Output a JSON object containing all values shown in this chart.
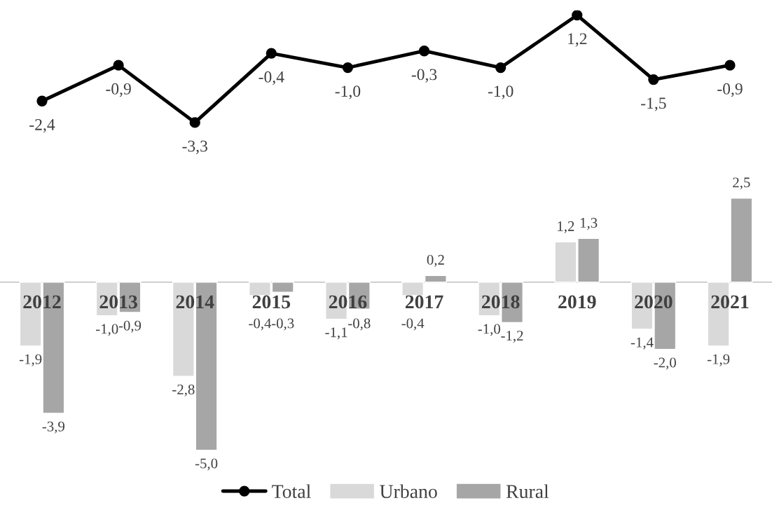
{
  "chart_data": [
    {
      "type": "line",
      "categories": [
        "2012",
        "2013",
        "2014",
        "2015",
        "2016",
        "2017",
        "2018",
        "2019",
        "2020",
        "2021"
      ],
      "series": [
        {
          "name": "Total",
          "color": "#000000",
          "values": [
            -2.4,
            -0.9,
            -3.3,
            -0.4,
            -1.0,
            -0.3,
            -1.0,
            1.2,
            -1.5,
            -0.9
          ],
          "value_labels": [
            "-2,4",
            "-0,9",
            "-3,3",
            "-0,4",
            "-1,0",
            "-0,3",
            "-1,0",
            "1,2",
            "-1,5",
            "-0,9"
          ]
        }
      ],
      "marker": "circle",
      "line_style": "solid",
      "tick_labels": false
    },
    {
      "type": "bar",
      "categories": [
        "2012",
        "2013",
        "2014",
        "2015",
        "2016",
        "2017",
        "2018",
        "2019",
        "2020",
        "2021"
      ],
      "series": [
        {
          "name": "Urbano",
          "color": "#d9d9d9",
          "values": [
            -1.9,
            -1.0,
            -2.8,
            -0.4,
            -1.1,
            -0.4,
            -1.0,
            1.2,
            -1.4,
            -1.9
          ],
          "value_labels": [
            "-1,9",
            "-1,0",
            "-2,8",
            "-0,4",
            "-1,1",
            "-0,4",
            "-1,0",
            "1,2",
            "-1,4",
            "-1,9"
          ]
        },
        {
          "name": "Rural",
          "color": "#a6a6a6",
          "values": [
            -3.9,
            -0.9,
            -5.0,
            -0.3,
            -0.8,
            0.2,
            -1.2,
            1.3,
            -2.0,
            2.5
          ],
          "value_labels": [
            "-3,9",
            "-0,9",
            "-5,0",
            "-0,3",
            "-0,8",
            "0,2",
            "-1,2",
            "1,3",
            "-2,0",
            "2,5"
          ]
        }
      ],
      "legend": "bottom",
      "tick_labels": "x"
    }
  ]
}
